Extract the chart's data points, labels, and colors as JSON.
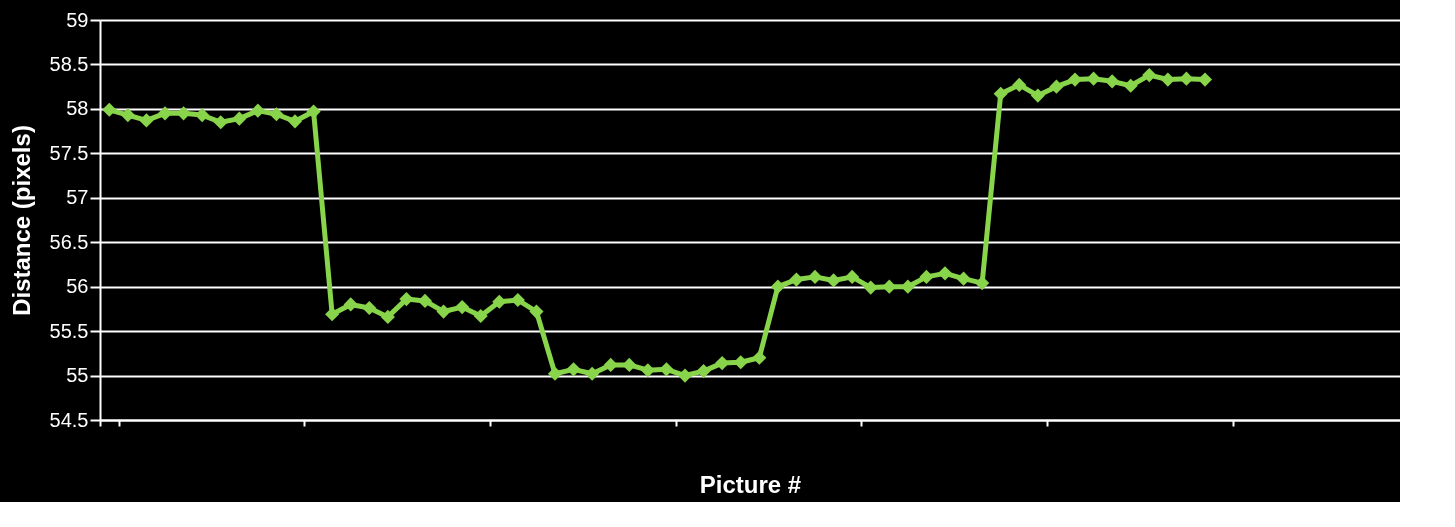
{
  "chart_data": {
    "type": "line",
    "xlabel": "Picture #",
    "ylabel": "Distance (pixels)",
    "categories": [
      null,
      null,
      null,
      null,
      null,
      null,
      null,
      null,
      null,
      null,
      null,
      null,
      null,
      null,
      null,
      null,
      null,
      null,
      null,
      null,
      null,
      null,
      null,
      null,
      null,
      null,
      null,
      null,
      null,
      null,
      null,
      null,
      null,
      null,
      null,
      null,
      null,
      null,
      null,
      null,
      null,
      null,
      null,
      null,
      null,
      null,
      null,
      null,
      null,
      null,
      null,
      null,
      null,
      null,
      null,
      null,
      null,
      null,
      null,
      null,
      null,
      null,
      null,
      null,
      null,
      null,
      null,
      null,
      null,
      null
    ],
    "series": [
      {
        "color": "#88d44a",
        "values": [
          57.99,
          57.93,
          57.87,
          57.95,
          57.95,
          57.93,
          57.85,
          57.89,
          57.98,
          57.94,
          57.86,
          57.97,
          55.69,
          55.8,
          55.76,
          55.66,
          55.86,
          55.84,
          55.72,
          55.77,
          55.67,
          55.83,
          55.85,
          55.72,
          55.02,
          55.07,
          55.02,
          55.12,
          55.12,
          55.06,
          55.07,
          55.0,
          55.05,
          55.14,
          55.15,
          55.2,
          56.0,
          56.08,
          56.11,
          56.07,
          56.11,
          55.99,
          56.0,
          56.0,
          56.11,
          56.15,
          56.09,
          56.04,
          58.17,
          58.27,
          58.15,
          58.25,
          58.33,
          58.34,
          58.31,
          58.26,
          58.38,
          58.33,
          58.34,
          58.33,
          null,
          null,
          null,
          null,
          null,
          null,
          null,
          null,
          null,
          null
        ]
      }
    ],
    "ylim": [
      54.5,
      59
    ],
    "yticks": [
      54.5,
      55,
      55.5,
      56,
      56.5,
      57,
      57.5,
      58,
      58.5,
      59
    ],
    "grid": "y",
    "legend": false,
    "marker": "diamond",
    "line_style": "solid"
  }
}
